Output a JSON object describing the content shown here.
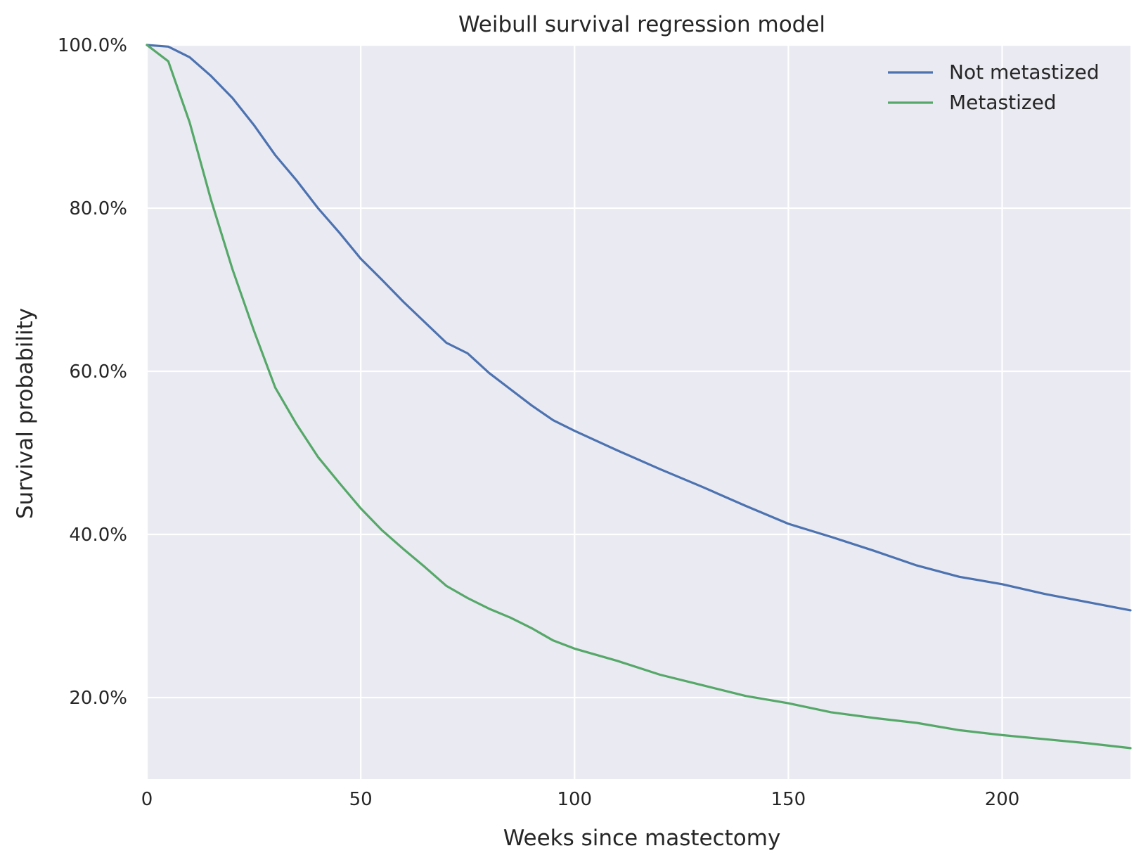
{
  "chart_data": {
    "type": "line",
    "title": "Weibull survival regression model",
    "xlabel": "Weeks since mastectomy",
    "ylabel": "Survival probability",
    "xlim": [
      0,
      230
    ],
    "ylim": [
      0.1,
      1.0
    ],
    "xticks": [
      0,
      50,
      100,
      150,
      200
    ],
    "xtick_labels": [
      "0",
      "50",
      "100",
      "150",
      "200"
    ],
    "yticks": [
      0.2,
      0.4,
      0.6,
      0.8,
      1.0
    ],
    "ytick_labels": [
      "20.0%",
      "40.0%",
      "60.0%",
      "80.0%",
      "100.0%"
    ],
    "grid": true,
    "legend_position": "top-right",
    "background_color": "#eaeaf2",
    "grid_color": "#ffffff",
    "x": [
      0,
      5,
      10,
      15,
      20,
      25,
      30,
      35,
      40,
      45,
      50,
      55,
      60,
      65,
      70,
      75,
      80,
      85,
      90,
      95,
      100,
      110,
      120,
      130,
      140,
      150,
      160,
      170,
      180,
      190,
      200,
      210,
      220,
      230
    ],
    "series": [
      {
        "name": "Not metastized",
        "color": "#4c72b0",
        "values": [
          1.0,
          0.998,
          0.985,
          0.962,
          0.935,
          0.902,
          0.865,
          0.834,
          0.8,
          0.77,
          0.738,
          0.712,
          0.685,
          0.66,
          0.635,
          0.622,
          0.598,
          0.578,
          0.558,
          0.54,
          0.527,
          0.503,
          0.48,
          0.458,
          0.435,
          0.413,
          0.397,
          0.38,
          0.362,
          0.348,
          0.339,
          0.327,
          0.317,
          0.307
        ]
      },
      {
        "name": "Metastized",
        "color": "#55a868",
        "values": [
          1.0,
          0.98,
          0.905,
          0.81,
          0.725,
          0.65,
          0.58,
          0.535,
          0.495,
          0.463,
          0.432,
          0.405,
          0.382,
          0.36,
          0.337,
          0.322,
          0.309,
          0.298,
          0.285,
          0.27,
          0.26,
          0.245,
          0.228,
          0.215,
          0.202,
          0.193,
          0.182,
          0.175,
          0.169,
          0.16,
          0.154,
          0.149,
          0.144,
          0.138
        ]
      }
    ]
  }
}
